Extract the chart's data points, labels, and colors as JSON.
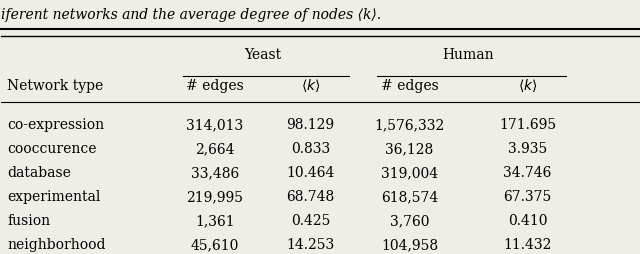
{
  "caption_text": "iferent networks and the average degree of nodes ⟨k⟩.",
  "col_headers_row2": [
    "Network type",
    "# edges",
    "⟨k⟩",
    "# edges",
    "⟨k⟩"
  ],
  "rows": [
    [
      "co-expression",
      "314,013",
      "98.129",
      "1,576,332",
      "171.695"
    ],
    [
      "cooccurence",
      "2,664",
      "0.833",
      "36,128",
      "3.935"
    ],
    [
      "database",
      "33,486",
      "10.464",
      "319,004",
      "34.746"
    ],
    [
      "experimental",
      "219,995",
      "68.748",
      "618,574",
      "67.375"
    ],
    [
      "fusion",
      "1,361",
      "0.425",
      "3,760",
      "0.410"
    ],
    [
      "neighborhood",
      "45,610",
      "14.253",
      "104,958",
      "11.432"
    ]
  ],
  "bg_color": "#f0ede6",
  "font_size": 10
}
